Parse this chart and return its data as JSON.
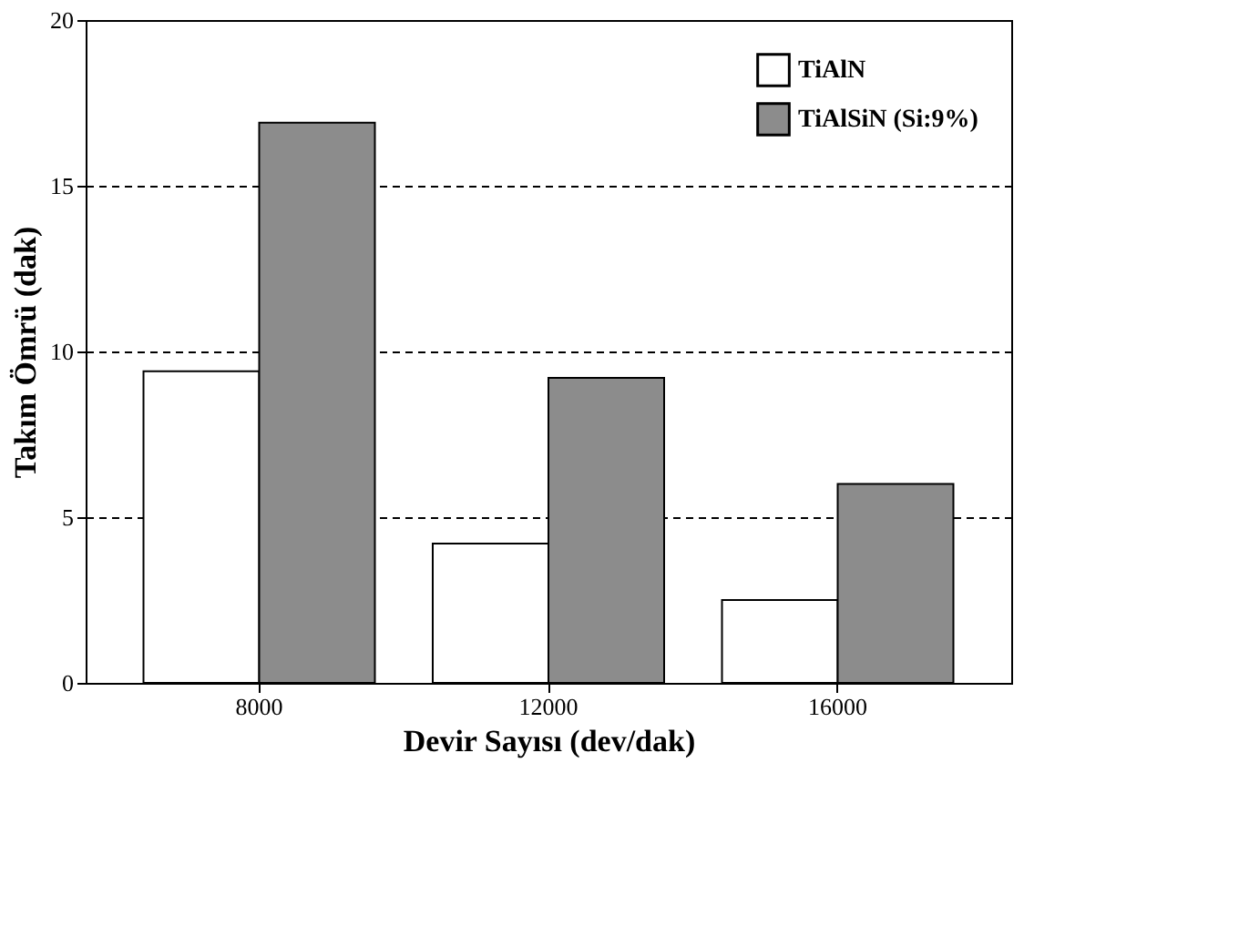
{
  "chart_data": {
    "type": "bar",
    "xlabel": "Devir Sayısı (dev/dak)",
    "ylabel": "Takım Ömrü (dak)",
    "categories": [
      "8000",
      "12000",
      "16000"
    ],
    "series": [
      {
        "name": "TiAlN",
        "color": "#ffffff",
        "values": [
          9.4,
          4.2,
          2.5
        ]
      },
      {
        "name": "TiAlSiN (Si:9%)",
        "color": "#8c8c8c",
        "values": [
          16.9,
          9.2,
          6.0
        ]
      }
    ],
    "ylim": [
      0,
      20
    ],
    "yticks": [
      0,
      5,
      10,
      15,
      20
    ],
    "grid": "y",
    "legend": "top right"
  }
}
